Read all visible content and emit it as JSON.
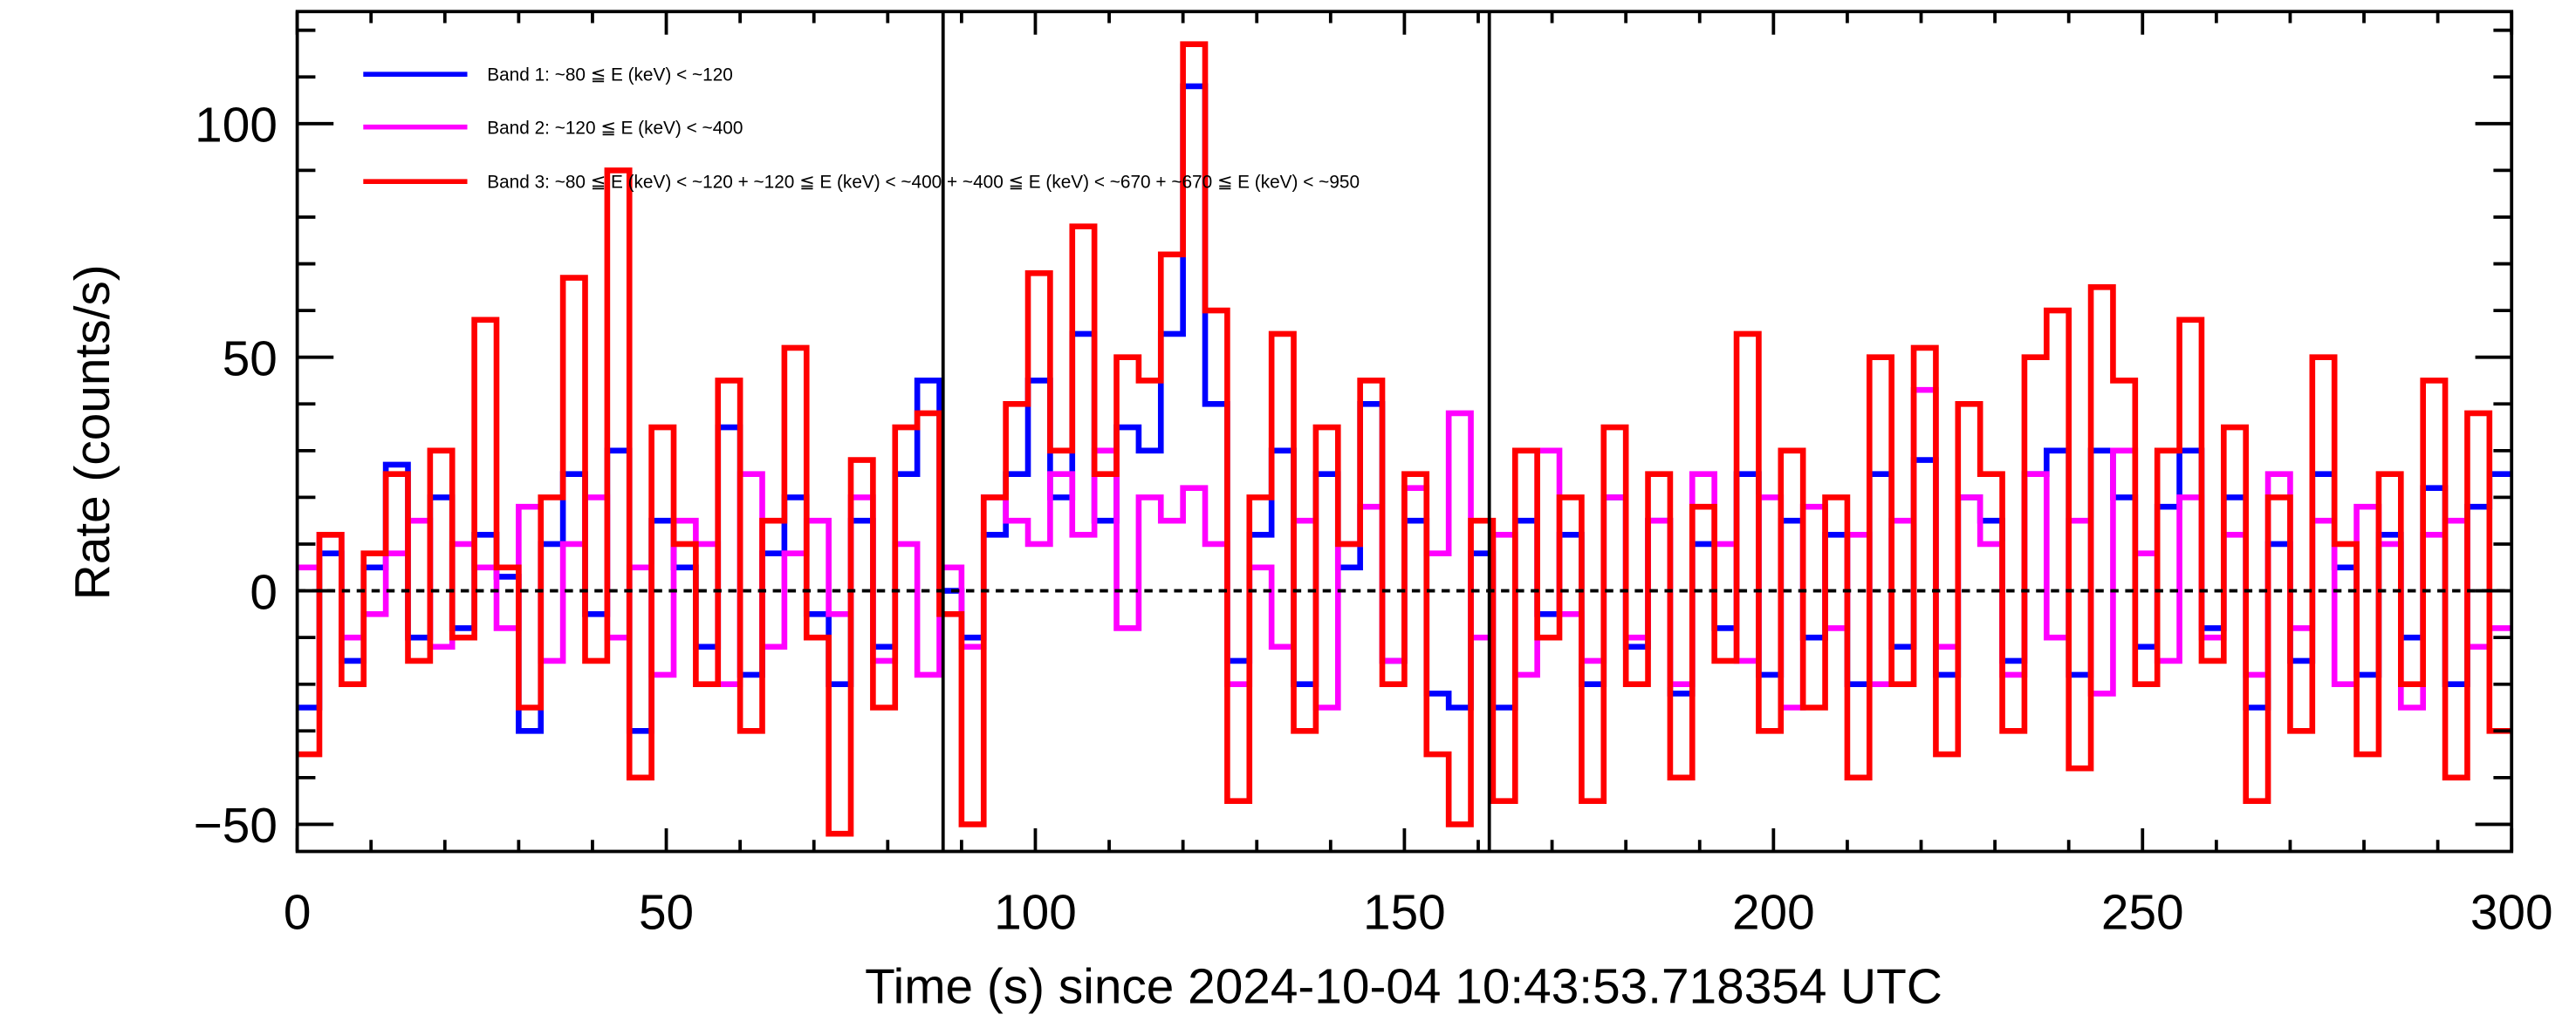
{
  "chart_data": {
    "type": "line",
    "style": "step-histogram",
    "xlabel": "Time (s) since 2024-10-04 10:43:53.718354 UTC",
    "ylabel": "Rate (counts/s)",
    "xlim": [
      0,
      300
    ],
    "ylim": [
      -55.8,
      124
    ],
    "x_ticks": [
      "0",
      "50",
      "100",
      "150",
      "200",
      "250",
      "300"
    ],
    "y_ticks": [
      "-50",
      "0",
      "50",
      "100"
    ],
    "x_tick_values": [
      0,
      50,
      100,
      150,
      200,
      250,
      300
    ],
    "y_tick_values": [
      -50,
      0,
      50,
      100
    ],
    "bin_width_s": 3,
    "zero_line": 0,
    "vertical_markers": [
      87.5,
      161.5
    ],
    "legend_position": "top-left",
    "series": [
      {
        "name": "Band 1: ~80 ≦ E (keV) < ~120",
        "color": "#0000ff",
        "values": [
          -25,
          8,
          -15,
          5,
          27,
          -10,
          20,
          -8,
          12,
          3,
          -30,
          10,
          25,
          -5,
          30,
          -30,
          15,
          5,
          -12,
          35,
          -18,
          8,
          20,
          -5,
          -20,
          15,
          -12,
          25,
          45,
          0,
          -10,
          12,
          25,
          45,
          20,
          55,
          15,
          35,
          30,
          55,
          108,
          40,
          -15,
          12,
          30,
          -20,
          25,
          5,
          40,
          -15,
          15,
          -22,
          -25,
          8,
          -25,
          15,
          -5,
          12,
          -20,
          20,
          -12,
          15,
          -22,
          10,
          -8,
          25,
          -18,
          15,
          -10,
          12,
          -20,
          25,
          -12,
          28,
          -18,
          20,
          15,
          -15,
          25,
          30,
          -18,
          30,
          20,
          -12,
          18,
          30,
          -8,
          20,
          -25,
          10,
          -15,
          25,
          5,
          -18,
          12,
          -10,
          22,
          -20,
          18,
          25
        ]
      },
      {
        "name": "Band 2: ~120 ≦ E (keV) < ~400",
        "color": "#ff00ff",
        "values": [
          5,
          12,
          -10,
          -5,
          8,
          15,
          -12,
          10,
          5,
          -8,
          18,
          -15,
          10,
          20,
          -10,
          5,
          -18,
          15,
          10,
          -20,
          25,
          -12,
          8,
          15,
          -5,
          20,
          -15,
          10,
          -18,
          5,
          -12,
          20,
          15,
          10,
          25,
          12,
          30,
          -8,
          20,
          15,
          22,
          10,
          -20,
          5,
          -12,
          15,
          -25,
          10,
          18,
          -15,
          22,
          8,
          38,
          -10,
          12,
          -18,
          30,
          -5,
          -15,
          20,
          -10,
          15,
          -20,
          25,
          10,
          -15,
          20,
          -25,
          18,
          -8,
          12,
          -20,
          15,
          43,
          -12,
          20,
          10,
          -18,
          25,
          -10,
          15,
          -22,
          30,
          8,
          -15,
          20,
          -10,
          12,
          -18,
          25,
          -8,
          15,
          -20,
          18,
          10,
          -25,
          12,
          15,
          -12,
          -8
        ]
      },
      {
        "name": "Band 3: ~80 ≦ E (keV) < ~120 + ~120 ≦ E (keV) < ~400 + ~400 ≦ E (keV) < ~670 + ~670 ≦ E (keV) < ~950",
        "color": "#ff0000",
        "values": [
          -35,
          12,
          -20,
          8,
          25,
          -15,
          30,
          -10,
          58,
          5,
          -25,
          20,
          67,
          -15,
          90,
          -40,
          35,
          10,
          -20,
          45,
          -30,
          15,
          52,
          -10,
          -52,
          28,
          -25,
          35,
          38,
          -5,
          -50,
          20,
          40,
          68,
          30,
          78,
          25,
          50,
          45,
          72,
          117,
          60,
          -45,
          20,
          55,
          -30,
          35,
          10,
          45,
          -20,
          25,
          -35,
          -50,
          15,
          -45,
          30,
          -10,
          20,
          -45,
          35,
          -20,
          25,
          -40,
          18,
          -15,
          55,
          -30,
          30,
          -25,
          20,
          -40,
          50,
          -20,
          52,
          -35,
          40,
          25,
          -30,
          50,
          60,
          -38,
          65,
          45,
          -20,
          30,
          58,
          -15,
          35,
          -45,
          20,
          -30,
          50,
          10,
          -35,
          25,
          -20,
          45,
          -40,
          38,
          -30
        ]
      }
    ]
  }
}
